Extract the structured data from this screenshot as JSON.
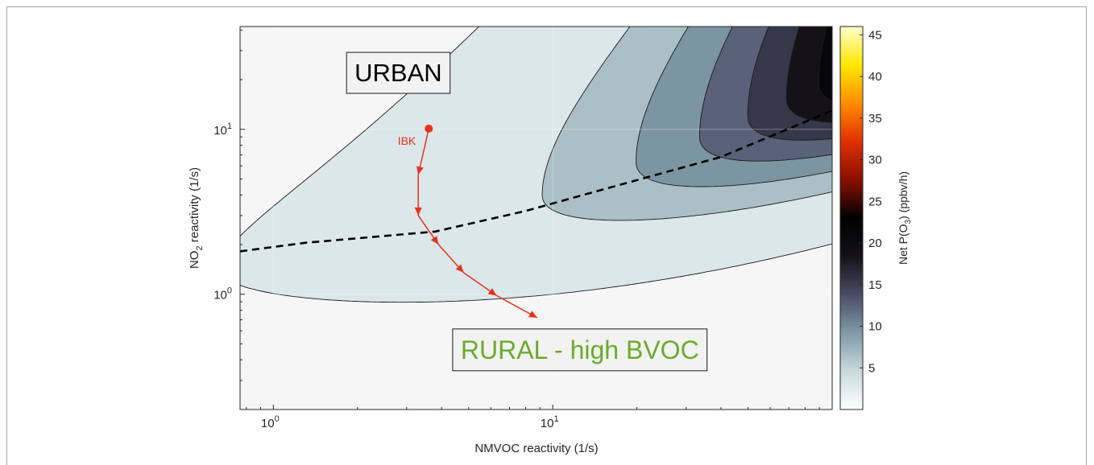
{
  "chart_data": {
    "type": "contour",
    "xlabel": "NMVOC reactivity (1/s)",
    "ylabel": {
      "main": "NO",
      "sub": "2",
      "rest": " reactivity (1/s)"
    },
    "xscale": "log",
    "yscale": "log",
    "xlim": [
      0.76,
      100
    ],
    "ylim": [
      0.2,
      42
    ],
    "x_ticks": [
      {
        "value": 1,
        "base": "10",
        "exp": "0"
      },
      {
        "value": 10,
        "base": "10",
        "exp": "1"
      }
    ],
    "y_ticks": [
      {
        "value": 1,
        "base": "10",
        "exp": "0"
      },
      {
        "value": 10,
        "base": "10",
        "exp": "1"
      }
    ],
    "grid": true,
    "colorbar": {
      "label": {
        "pre": "Net P(O",
        "sub": "3",
        "post": ") (ppbv/h)"
      },
      "range": [
        0,
        46
      ],
      "ticks": [
        5,
        10,
        15,
        20,
        25,
        30,
        35,
        40,
        45
      ],
      "colormap": [
        "#ffffff",
        "#c8dadd",
        "#7f9aa6",
        "#4a4c66",
        "#141218",
        "#000000",
        "#8a1000",
        "#e03000",
        "#ff8c00",
        "#ffe800",
        "#ffffd0"
      ]
    },
    "contour_levels": [
      1,
      5,
      8,
      11,
      14,
      17,
      20,
      23,
      26,
      29,
      32,
      35,
      38,
      41,
      44
    ],
    "ridge_line": {
      "style": "dashed",
      "color": "#000000",
      "points": [
        [
          0.76,
          1.82
        ],
        [
          1.3,
          2.05
        ],
        [
          3.8,
          2.4
        ],
        [
          8,
          3.2
        ],
        [
          15,
          4.3
        ],
        [
          40,
          6.8
        ],
        [
          100,
          13
        ]
      ]
    },
    "trajectory": {
      "label": "IBK",
      "color": "#e8311f",
      "points": [
        [
          3.6,
          10.1
        ],
        [
          3.3,
          5.3
        ],
        [
          3.3,
          3.0
        ],
        [
          3.9,
          2.0
        ],
        [
          4.8,
          1.35
        ],
        [
          6.3,
          0.98
        ],
        [
          8.8,
          0.72
        ]
      ]
    },
    "annotations": [
      {
        "text": "URBAN",
        "color": "#000000",
        "x": 2.8,
        "y": 22
      },
      {
        "text": "RURAL - high BVOC",
        "color": "#6aab2c",
        "x": 12.5,
        "y": 0.46
      }
    ]
  }
}
